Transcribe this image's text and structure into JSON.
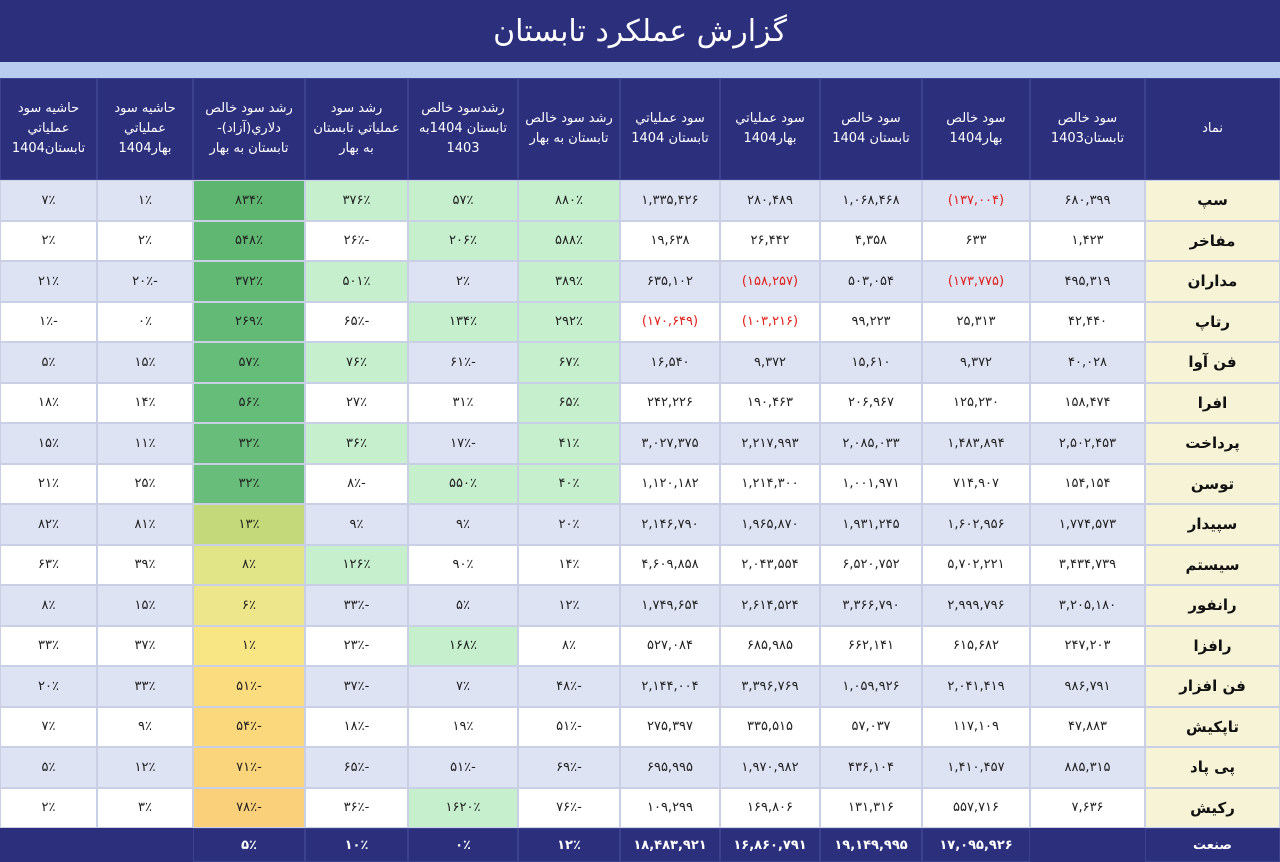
{
  "header": {
    "title": "گزارش عملکرد تابستان"
  },
  "table": {
    "columns": [
      "نماد",
      "سود خالص تابستان1403",
      "سود خالص بهار1404",
      "سود خالص تابستان 1404",
      "سود عملیاتي بهار1404",
      "سود عملیاتي تابستان 1404",
      "رشد سود خالص تابستان به بهار",
      "رشدسود خالص تابستان 1404به 1403",
      "رشد سود عملیاتي تابستان به بهار",
      "رشد سود خالص دلاري(آزاد)-تابستان به بهار",
      "حاشیه سود عملیاتي بهار1404",
      "حاشیه سود عملیاتي تابستان1404"
    ],
    "rows": [
      [
        "سپ",
        "۶۸۰,۳۹۹",
        "(۱۳۷,۰۰۴)",
        "۱,۰۶۸,۴۶۸",
        "۲۸۰,۴۸۹",
        "۱,۳۳۵,۴۲۶",
        "۸۸۰٪",
        "۵۷٪",
        "۳۷۶٪",
        "۸۳۴٪",
        "۱٪",
        "۷٪"
      ],
      [
        "مفاخر",
        "۱,۴۲۳",
        "۶۳۳",
        "۴,۳۵۸",
        "۲۶,۴۴۲",
        "۱۹,۶۳۸",
        "۵۸۸٪",
        "۲۰۶٪",
        "-۲۶٪",
        "۵۴۸٪",
        "۲٪",
        "۲٪"
      ],
      [
        "مداران",
        "۴۹۵,۳۱۹",
        "(۱۷۳,۷۷۵)",
        "۵۰۳,۰۵۴",
        "(۱۵۸,۲۵۷)",
        "۶۳۵,۱۰۲",
        "۳۸۹٪",
        "۲٪",
        "۵۰۱٪",
        "۳۷۲٪",
        "-۲۰٪",
        "۲۱٪"
      ],
      [
        "رتاپ",
        "۴۲,۴۴۰",
        "۲۵,۳۱۳",
        "۹۹,۲۲۳",
        "(۱۰۳,۲۱۶)",
        "(۱۷۰,۶۴۹)",
        "۲۹۲٪",
        "۱۳۴٪",
        "-۶۵٪",
        "۲۶۹٪",
        "۰٪",
        "-۱٪"
      ],
      [
        "فن آوا",
        "۴۰,۰۲۸",
        "۹,۳۷۲",
        "۱۵,۶۱۰",
        "۹,۳۷۲",
        "۱۶,۵۴۰",
        "۶۷٪",
        "-۶۱٪",
        "۷۶٪",
        "۵۷٪",
        "۱۵٪",
        "۵٪"
      ],
      [
        "افرا",
        "۱۵۸,۴۷۴",
        "۱۲۵,۲۳۰",
        "۲۰۶,۹۶۷",
        "۱۹۰,۴۶۳",
        "۲۴۲,۲۲۶",
        "۶۵٪",
        "۳۱٪",
        "۲۷٪",
        "۵۶٪",
        "۱۴٪",
        "۱۸٪"
      ],
      [
        "پرداخت",
        "۲,۵۰۲,۴۵۳",
        "۱,۴۸۳,۸۹۴",
        "۲,۰۸۵,۰۳۳",
        "۲,۲۱۷,۹۹۳",
        "۳,۰۲۷,۳۷۵",
        "۴۱٪",
        "-۱۷٪",
        "۳۶٪",
        "۳۲٪",
        "۱۱٪",
        "۱۵٪"
      ],
      [
        "توسن",
        "۱۵۴,۱۵۴",
        "۷۱۴,۹۰۷",
        "۱,۰۰۱,۹۷۱",
        "۱,۲۱۴,۳۰۰",
        "۱,۱۲۰,۱۸۲",
        "۴۰٪",
        "۵۵۰٪",
        "-۸٪",
        "۳۲٪",
        "۲۵٪",
        "۲۱٪"
      ],
      [
        "سپیدار",
        "۱,۷۷۴,۵۷۳",
        "۱,۶۰۲,۹۵۶",
        "۱,۹۳۱,۲۴۵",
        "۱,۹۶۵,۸۷۰",
        "۲,۱۴۶,۷۹۰",
        "۲۰٪",
        "۹٪",
        "۹٪",
        "۱۳٪",
        "۸۱٪",
        "۸۲٪"
      ],
      [
        "سیستم",
        "۳,۴۳۴,۷۳۹",
        "۵,۷۰۲,۲۲۱",
        "۶,۵۲۰,۷۵۲",
        "۲,۰۴۳,۵۵۴",
        "۴,۶۰۹,۸۵۸",
        "۱۴٪",
        "۹۰٪",
        "۱۲۶٪",
        "۸٪",
        "۳۹٪",
        "۶۳٪"
      ],
      [
        "رانفور",
        "۳,۲۰۵,۱۸۰",
        "۲,۹۹۹,۷۹۶",
        "۳,۳۶۶,۷۹۰",
        "۲,۶۱۴,۵۲۴",
        "۱,۷۴۹,۶۵۴",
        "۱۲٪",
        "۵٪",
        "-۳۳٪",
        "۶٪",
        "۱۵٪",
        "۸٪"
      ],
      [
        "رافزا",
        "۲۴۷,۲۰۳",
        "۶۱۵,۶۸۲",
        "۶۶۲,۱۴۱",
        "۶۸۵,۹۸۵",
        "۵۲۷,۰۸۴",
        "۸٪",
        "۱۶۸٪",
        "-۲۳٪",
        "۱٪",
        "۳۷٪",
        "۳۳٪"
      ],
      [
        "فن افزار",
        "۹۸۶,۷۹۱",
        "۲,۰۴۱,۴۱۹",
        "۱,۰۵۹,۹۲۶",
        "۳,۳۹۶,۷۶۹",
        "۲,۱۴۴,۰۰۴",
        "-۴۸٪",
        "۷٪",
        "-۳۷٪",
        "-۵۱٪",
        "۳۳٪",
        "۲۰٪"
      ],
      [
        "تاپکیش",
        "۴۷,۸۸۳",
        "۱۱۷,۱۰۹",
        "۵۷,۰۳۷",
        "۳۳۵,۵۱۵",
        "۲۷۵,۳۹۷",
        "-۵۱٪",
        "۱۹٪",
        "-۱۸٪",
        "-۵۴٪",
        "۹٪",
        "۷٪"
      ],
      [
        "پی پاد",
        "۸۸۵,۳۱۵",
        "۱,۴۱۰,۴۵۷",
        "۴۳۶,۱۰۴",
        "۱,۹۷۰,۹۸۲",
        "۶۹۵,۹۹۵",
        "-۶۹٪",
        "-۵۱٪",
        "-۶۵٪",
        "-۷۱٪",
        "۱۲٪",
        "۵٪"
      ],
      [
        "رکیش",
        "۷,۶۳۶",
        "۵۵۷,۷۱۶",
        "۱۳۱,۳۱۶",
        "۱۶۹,۸۰۶",
        "۱۰۹,۲۹۹",
        "-۷۶٪",
        "۱۶۲۰٪",
        "-۳۶٪",
        "-۷۸٪",
        "۳٪",
        "۲٪"
      ]
    ],
    "footer": {
      "label": "صنعت",
      "values": [
        "۱۷,۰۹۵,۹۲۶",
        "۱۹,۱۴۹,۹۹۵",
        "۱۶,۸۶۰,۷۹۱",
        "۱۸,۴۸۳,۹۲۱",
        "۱۲٪",
        "۰٪",
        "۱۰٪",
        "۵٪"
      ]
    }
  }
}
